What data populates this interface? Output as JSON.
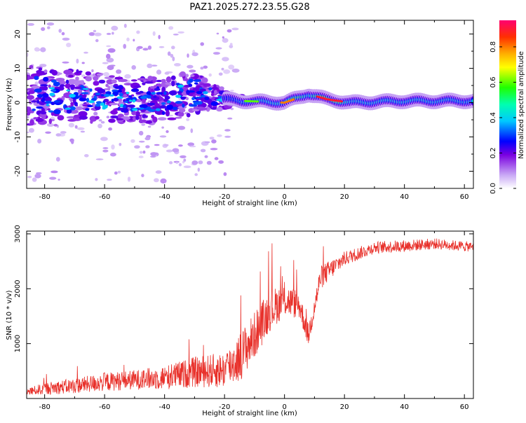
{
  "page": {
    "title": "PAZ1.2025.272.23.55.G28"
  },
  "chart_data": [
    {
      "type": "heatmap",
      "xlabel": "Height of straight line (km)",
      "ylabel": "Frequency (Hz)",
      "xlim": [
        -86,
        63
      ],
      "ylim": [
        -25,
        24
      ],
      "x_ticks": [
        -80,
        -60,
        -40,
        -20,
        0,
        20,
        40,
        60
      ],
      "x_tick_labels": [
        "-80",
        "-60",
        "-40",
        "-20",
        "0",
        "20",
        "40",
        "60"
      ],
      "y_ticks": [
        -20,
        -10,
        0,
        10,
        20
      ],
      "y_tick_labels": [
        "-20",
        "-10",
        "0",
        "10",
        "20"
      ],
      "colorbar": {
        "label": "Normalized spectral amplitude",
        "range": [
          0,
          0.95
        ],
        "ticks": [
          0,
          0.2,
          0.4,
          0.6,
          0.8
        ],
        "tick_labels": [
          "0.0",
          "0.2",
          "0.4",
          "0.6",
          "0.8"
        ]
      },
      "ridge_trend": [
        {
          "x": -86,
          "freq": 2.0,
          "amp": 0.25,
          "spread": 7
        },
        {
          "x": -70,
          "freq": 1.5,
          "amp": 0.25,
          "spread": 6
        },
        {
          "x": -55,
          "freq": 1.0,
          "amp": 0.25,
          "spread": 5
        },
        {
          "x": -40,
          "freq": 0.5,
          "amp": 0.25,
          "spread": 5
        },
        {
          "x": -30,
          "freq": 3.0,
          "amp": 0.28,
          "spread": 5
        },
        {
          "x": -20,
          "freq": 1.0,
          "amp": 0.3,
          "spread": 2
        },
        {
          "x": -14,
          "freq": 0.5,
          "amp": 0.4,
          "spread": 1
        },
        {
          "x": 0,
          "freq": 0.0,
          "amp": 0.5,
          "spread": 1
        },
        {
          "x": 5,
          "freq": 1.5,
          "amp": 0.6,
          "spread": 1
        },
        {
          "x": 8,
          "freq": 2.5,
          "amp": 0.45,
          "spread": 1
        },
        {
          "x": 14,
          "freq": 1.0,
          "amp": 0.8,
          "spread": 1
        },
        {
          "x": 22,
          "freq": 0.0,
          "amp": 0.45,
          "spread": 1
        },
        {
          "x": 40,
          "freq": 0.5,
          "amp": 0.45,
          "spread": 1
        },
        {
          "x": 63,
          "freq": 0.5,
          "amp": 0.42,
          "spread": 1
        }
      ]
    },
    {
      "type": "line",
      "xlabel": "Height of straight line (km)",
      "ylabel": "SNR (10 * v/v)",
      "xlim": [
        -86,
        63
      ],
      "ylim": [
        0,
        3050
      ],
      "x_ticks": [
        -80,
        -60,
        -40,
        -20,
        0,
        20,
        40,
        60
      ],
      "x_tick_labels": [
        "-80",
        "-60",
        "-40",
        "-20",
        "0",
        "20",
        "40",
        "60"
      ],
      "y_ticks": [
        1000,
        2000,
        3000
      ],
      "y_tick_labels": [
        "1000",
        "2000",
        "3000"
      ],
      "series": [
        {
          "name": "SNR",
          "color": "#e8302a",
          "x": [
            -86,
            -80,
            -70,
            -60,
            -50,
            -40,
            -30,
            -20,
            -15,
            -10,
            -5,
            0,
            5,
            8,
            12,
            20,
            30,
            40,
            50,
            63
          ],
          "y": [
            120,
            180,
            230,
            300,
            340,
            380,
            480,
            520,
            750,
            1150,
            1600,
            1800,
            1700,
            1150,
            2200,
            2550,
            2750,
            2780,
            2820,
            2760
          ],
          "noise_amplitude": [
            60,
            110,
            140,
            170,
            180,
            220,
            280,
            330,
            450,
            430,
            380,
            300,
            260,
            200,
            220,
            130,
            110,
            110,
            100,
            90
          ]
        }
      ]
    }
  ]
}
